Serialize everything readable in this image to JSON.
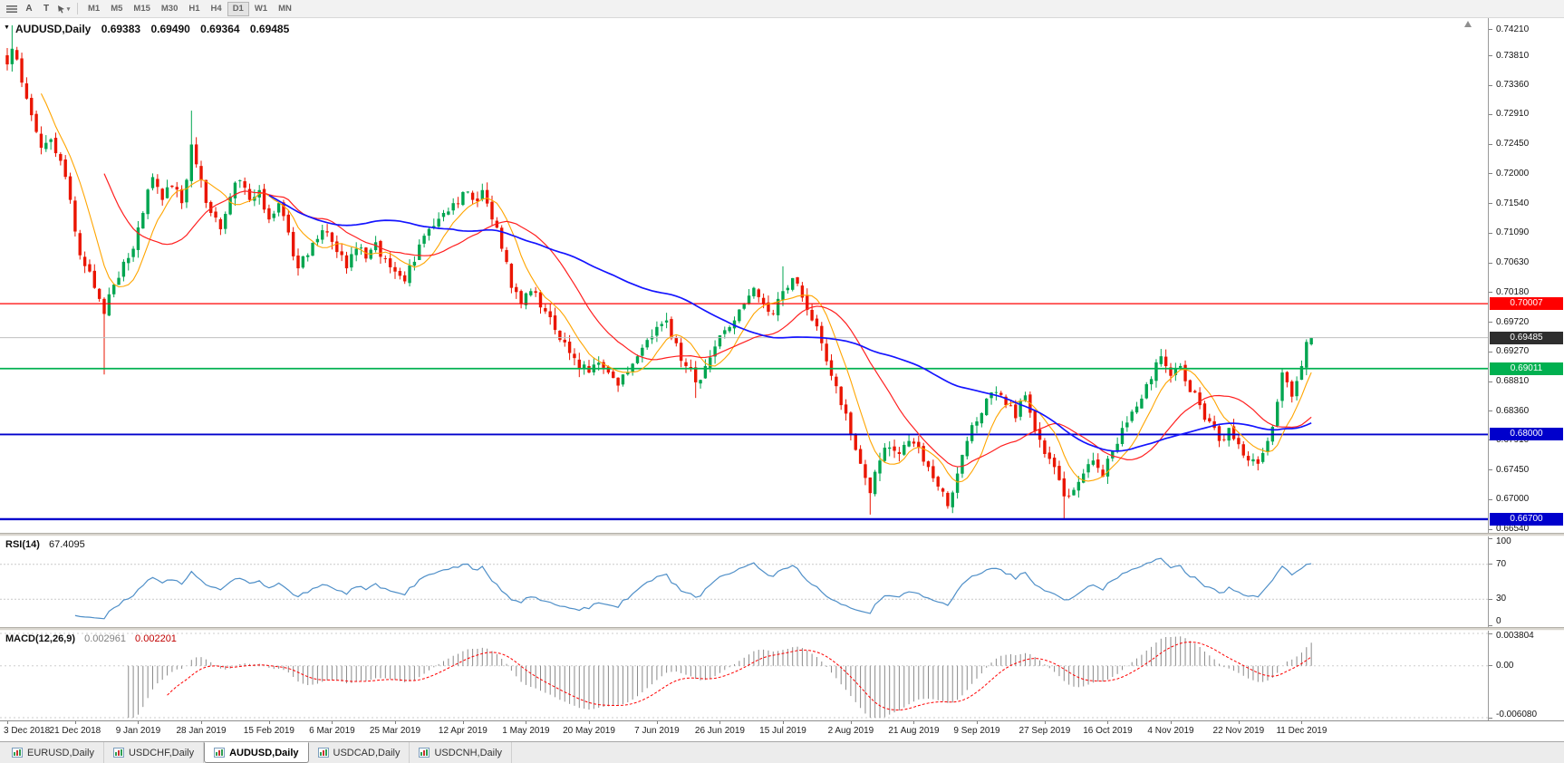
{
  "toolbar": {
    "timeframes": [
      "M1",
      "M5",
      "M15",
      "M30",
      "H1",
      "H4",
      "D1",
      "W1",
      "MN"
    ],
    "active_timeframe": "D1",
    "tool_letters": {
      "cursor": "A",
      "text": "T"
    }
  },
  "chart_data": {
    "type": "candlestick",
    "symbol": "AUDUSD",
    "period": "Daily",
    "title_text": "AUDUSD,Daily",
    "ohlc_display": {
      "open": "0.69383",
      "high": "0.69490",
      "low": "0.69364",
      "close": "0.69485"
    },
    "last_bar": {
      "open": 0.69383,
      "high": 0.6949,
      "low": 0.69364,
      "close": 0.69485
    },
    "candle_count": 270,
    "colors": {
      "up": "#00A550",
      "down": "#EA1500",
      "background": "#FFFFFF"
    },
    "y_axis": {
      "min": 0.6649,
      "max": 0.7439,
      "ticks": [
        "0.74210",
        "0.73810",
        "0.73360",
        "0.72910",
        "0.72450",
        "0.72000",
        "0.71540",
        "0.71090",
        "0.70630",
        "0.70180",
        "0.69720",
        "0.69270",
        "0.68810",
        "0.68360",
        "0.67910",
        "0.67450",
        "0.67000",
        "0.66540"
      ]
    },
    "horizontal_lines": [
      {
        "price": 0.70007,
        "label": "0.70007",
        "color": "#FF0000",
        "width": 1.2
      },
      {
        "price": 0.69011,
        "label": "0.69011",
        "color": "#00B050",
        "width": 1.8
      },
      {
        "price": 0.68,
        "label": "0.68000",
        "color": "#0000CC",
        "width": 1.8
      },
      {
        "price": 0.667,
        "label": "0.66700",
        "color": "#0000CC",
        "width": 2.4
      }
    ],
    "current_price": {
      "value": 0.69485,
      "label": "0.69485",
      "box_color": "#2E2E2E",
      "line_color": "#C0C0C0"
    },
    "moving_averages": [
      {
        "name": "fast",
        "period": 8,
        "color": "#FFA500",
        "width": 1.1
      },
      {
        "name": "medium",
        "period": 21,
        "color": "#FF2020",
        "width": 1.2
      },
      {
        "name": "slow",
        "period": 55,
        "color": "#1414FF",
        "width": 1.7
      }
    ],
    "close_anchors": [
      [
        0,
        0.7368
      ],
      [
        1,
        0.7392
      ],
      [
        3,
        0.734
      ],
      [
        5,
        0.729
      ],
      [
        7,
        0.724
      ],
      [
        9,
        0.7253
      ],
      [
        11,
        0.722
      ],
      [
        13,
        0.716
      ],
      [
        15,
        0.7075
      ],
      [
        17,
        0.705
      ],
      [
        19,
        0.7008
      ],
      [
        20,
        0.6985
      ],
      [
        22,
        0.703
      ],
      [
        24,
        0.7065
      ],
      [
        26,
        0.7085
      ],
      [
        28,
        0.714
      ],
      [
        30,
        0.7195
      ],
      [
        32,
        0.716
      ],
      [
        34,
        0.718
      ],
      [
        36,
        0.7155
      ],
      [
        38,
        0.7245
      ],
      [
        40,
        0.719
      ],
      [
        42,
        0.714
      ],
      [
        44,
        0.7115
      ],
      [
        46,
        0.7165
      ],
      [
        48,
        0.719
      ],
      [
        50,
        0.716
      ],
      [
        52,
        0.7175
      ],
      [
        54,
        0.713
      ],
      [
        56,
        0.7155
      ],
      [
        58,
        0.711
      ],
      [
        60,
        0.7055
      ],
      [
        62,
        0.7075
      ],
      [
        64,
        0.71
      ],
      [
        66,
        0.711
      ],
      [
        68,
        0.708
      ],
      [
        70,
        0.7055
      ],
      [
        72,
        0.7085
      ],
      [
        74,
        0.707
      ],
      [
        76,
        0.7095
      ],
      [
        78,
        0.707
      ],
      [
        80,
        0.705
      ],
      [
        82,
        0.7035
      ],
      [
        84,
        0.7065
      ],
      [
        86,
        0.7105
      ],
      [
        88,
        0.712
      ],
      [
        90,
        0.714
      ],
      [
        92,
        0.7155
      ],
      [
        94,
        0.7172
      ],
      [
        96,
        0.716
      ],
      [
        98,
        0.7175
      ],
      [
        100,
        0.713
      ],
      [
        102,
        0.7085
      ],
      [
        104,
        0.7025
      ],
      [
        106,
        0.7
      ],
      [
        108,
        0.702
      ],
      [
        110,
        0.6995
      ],
      [
        112,
        0.698
      ],
      [
        114,
        0.6945
      ],
      [
        116,
        0.6925
      ],
      [
        118,
        0.69
      ],
      [
        120,
        0.6895
      ],
      [
        122,
        0.691
      ],
      [
        124,
        0.6895
      ],
      [
        126,
        0.6875
      ],
      [
        128,
        0.6895
      ],
      [
        130,
        0.692
      ],
      [
        132,
        0.6945
      ],
      [
        134,
        0.6965
      ],
      [
        136,
        0.6975
      ],
      [
        138,
        0.694
      ],
      [
        140,
        0.6905
      ],
      [
        142,
        0.688
      ],
      [
        144,
        0.6905
      ],
      [
        146,
        0.6935
      ],
      [
        148,
        0.696
      ],
      [
        150,
        0.6975
      ],
      [
        152,
        0.7
      ],
      [
        154,
        0.7025
      ],
      [
        156,
        0.7
      ],
      [
        158,
        0.6985
      ],
      [
        160,
        0.702
      ],
      [
        162,
        0.704
      ],
      [
        164,
        0.701
      ],
      [
        166,
        0.6975
      ],
      [
        168,
        0.694
      ],
      [
        170,
        0.689
      ],
      [
        172,
        0.6845
      ],
      [
        174,
        0.68
      ],
      [
        176,
        0.6755
      ],
      [
        178,
        0.671
      ],
      [
        180,
        0.676
      ],
      [
        182,
        0.678
      ],
      [
        184,
        0.677
      ],
      [
        186,
        0.679
      ],
      [
        188,
        0.678
      ],
      [
        190,
        0.675
      ],
      [
        192,
        0.672
      ],
      [
        194,
        0.669
      ],
      [
        196,
        0.674
      ],
      [
        198,
        0.679
      ],
      [
        200,
        0.682
      ],
      [
        202,
        0.6855
      ],
      [
        204,
        0.6865
      ],
      [
        206,
        0.6845
      ],
      [
        208,
        0.6825
      ],
      [
        210,
        0.686
      ],
      [
        212,
        0.6805
      ],
      [
        214,
        0.677
      ],
      [
        216,
        0.675
      ],
      [
        218,
        0.6705
      ],
      [
        220,
        0.6715
      ],
      [
        222,
        0.674
      ],
      [
        224,
        0.676
      ],
      [
        226,
        0.6735
      ],
      [
        228,
        0.6775
      ],
      [
        230,
        0.681
      ],
      [
        232,
        0.6835
      ],
      [
        234,
        0.6855
      ],
      [
        236,
        0.6885
      ],
      [
        238,
        0.692
      ],
      [
        240,
        0.689
      ],
      [
        242,
        0.6905
      ],
      [
        244,
        0.6865
      ],
      [
        246,
        0.6845
      ],
      [
        248,
        0.682
      ],
      [
        250,
        0.679
      ],
      [
        252,
        0.681
      ],
      [
        254,
        0.6785
      ],
      [
        256,
        0.676
      ],
      [
        258,
        0.6755
      ],
      [
        260,
        0.679
      ],
      [
        262,
        0.685
      ],
      [
        263,
        0.6895
      ],
      [
        264,
        0.688
      ],
      [
        265,
        0.6858
      ],
      [
        266,
        0.6882
      ],
      [
        267,
        0.6905
      ],
      [
        268,
        0.6942
      ],
      [
        269,
        0.69485
      ]
    ],
    "wick_overrides": [
      [
        1,
        "high",
        0.7428
      ],
      [
        20,
        "low",
        0.6892
      ],
      [
        38,
        "high",
        0.7297
      ],
      [
        142,
        "low",
        0.6856
      ],
      [
        160,
        "high",
        0.7058
      ],
      [
        178,
        "low",
        0.6677
      ],
      [
        194,
        "low",
        0.6686
      ],
      [
        218,
        "low",
        0.667
      ]
    ],
    "x_axis_labels": [
      {
        "day": 0,
        "text": "3 Dec 2018"
      },
      {
        "day": 14,
        "text": "21 Dec 2018"
      },
      {
        "day": 27,
        "text": "9 Jan 2019"
      },
      {
        "day": 40,
        "text": "28 Jan 2019"
      },
      {
        "day": 54,
        "text": "15 Feb 2019"
      },
      {
        "day": 67,
        "text": "6 Mar 2019"
      },
      {
        "day": 80,
        "text": "25 Mar 2019"
      },
      {
        "day": 94,
        "text": "12 Apr 2019"
      },
      {
        "day": 107,
        "text": "1 May 2019"
      },
      {
        "day": 120,
        "text": "20 May 2019"
      },
      {
        "day": 134,
        "text": "7 Jun 2019"
      },
      {
        "day": 147,
        "text": "26 Jun 2019"
      },
      {
        "day": 160,
        "text": "15 Jul 2019"
      },
      {
        "day": 174,
        "text": "2 Aug 2019"
      },
      {
        "day": 187,
        "text": "21 Aug 2019"
      },
      {
        "day": 200,
        "text": "9 Sep 2019"
      },
      {
        "day": 214,
        "text": "27 Sep 2019"
      },
      {
        "day": 227,
        "text": "16 Oct 2019"
      },
      {
        "day": 240,
        "text": "4 Nov 2019"
      },
      {
        "day": 254,
        "text": "22 Nov 2019"
      },
      {
        "day": 267,
        "text": "11 Dec 2019"
      }
    ],
    "indicators": {
      "rsi": {
        "name": "RSI(14)",
        "period": 14,
        "value_display": "67.4095",
        "line_color": "#4F8FC8",
        "levels": [
          70,
          30
        ],
        "axis_ticks": [
          100,
          70,
          30,
          0
        ]
      },
      "macd": {
        "name": "MACD(12,26,9)",
        "fast": 12,
        "slow": 26,
        "signal": 9,
        "value_main": "0.002961",
        "value_signal": "0.002201",
        "axis_ticks": [
          {
            "text": "0.003804",
            "value": 0.003804
          },
          {
            "text": "0.00",
            "value": 0
          },
          {
            "text": "-0.006080",
            "value": -0.00608
          }
        ],
        "scale_min": -0.00608,
        "scale_max": 0.003804,
        "histogram_color": "#8A8A8A",
        "signal_color": "#FF0000"
      }
    }
  },
  "tabs": {
    "items": [
      {
        "label": "EURUSD,Daily",
        "active": false
      },
      {
        "label": "USDCHF,Daily",
        "active": false
      },
      {
        "label": "AUDUSD,Daily",
        "active": true
      },
      {
        "label": "USDCAD,Daily",
        "active": false
      },
      {
        "label": "USDCNH,Daily",
        "active": false
      }
    ]
  }
}
